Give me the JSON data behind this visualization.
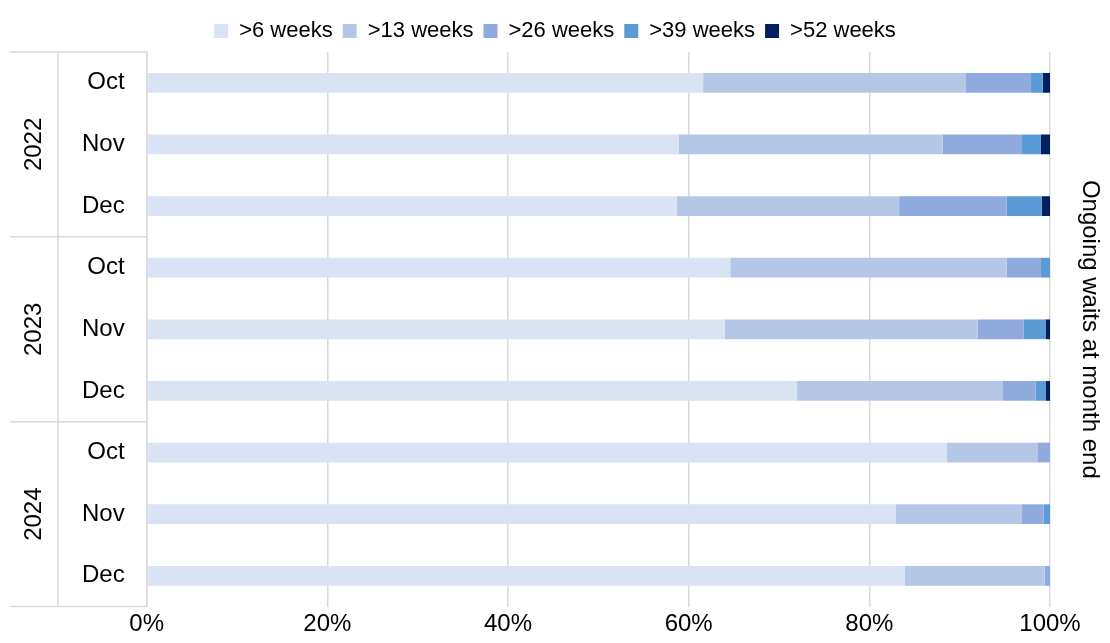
{
  "chart_data": {
    "type": "bar",
    "orientation": "horizontal",
    "stacked": true,
    "categories": [
      "Oct",
      "Nov",
      "Dec",
      "Oct",
      "Nov",
      "Dec",
      "Oct",
      "Nov",
      "Dec"
    ],
    "annotations": [
      "2022",
      "2023",
      "2024"
    ],
    "y2label": "Ongoing waits at month end",
    "series": [
      {
        "name": ">6 weeks",
        "color": "#dae3f3",
        "values": [
          61.6,
          58.9,
          58.7,
          64.6,
          64.0,
          72.0,
          88.6,
          82.9,
          83.9
        ]
      },
      {
        "name": ">13 weeks",
        "color": "#b4c7e7",
        "values": [
          29.1,
          29.2,
          24.6,
          30.6,
          28.0,
          22.8,
          10.0,
          14.0,
          15.5
        ]
      },
      {
        "name": ">26 weeks",
        "color": "#8faadc",
        "values": [
          7.2,
          8.8,
          11.9,
          3.8,
          5.1,
          3.6,
          1.4,
          2.4,
          0.6
        ]
      },
      {
        "name": ">39 weeks",
        "color": "#5b9bd5",
        "values": [
          1.3,
          2.1,
          3.9,
          1.0,
          2.4,
          1.1,
          0,
          0.7,
          0
        ]
      },
      {
        "name": ">52 weeks",
        "color": "#002060",
        "values": [
          0.8,
          1.0,
          0.9,
          0,
          0.5,
          0.5,
          0,
          0,
          0
        ]
      }
    ],
    "xlim": [
      0,
      100
    ],
    "xticks": [
      {
        "value": 0,
        "label": "0%"
      },
      {
        "value": 20,
        "label": "20%"
      },
      {
        "value": 40,
        "label": "40%"
      },
      {
        "value": 60,
        "label": "60%"
      },
      {
        "value": 80,
        "label": "80%"
      },
      {
        "value": 100,
        "label": "100%"
      }
    ],
    "grid": "x",
    "legend": "top"
  }
}
